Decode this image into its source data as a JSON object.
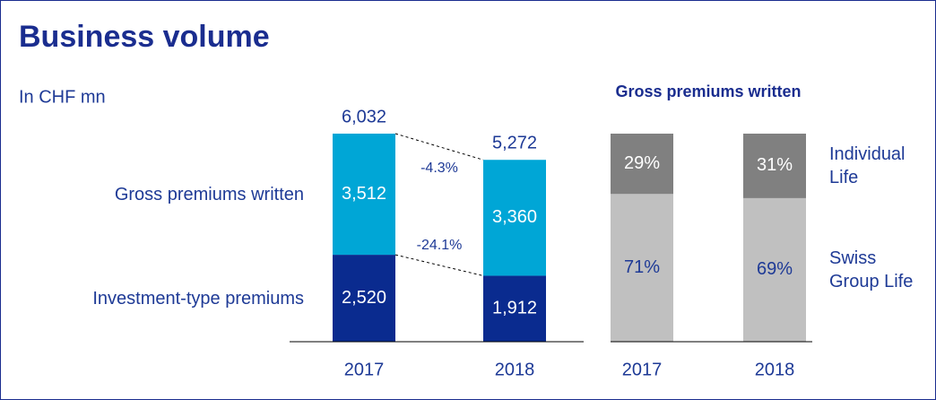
{
  "title": "Business volume",
  "subtitle": "In CHF mn",
  "chart_data": [
    {
      "type": "stacked_bar",
      "categories": [
        "2017",
        "2018"
      ],
      "series": [
        {
          "name": "Investment-type premiums",
          "color": "#0a2b8f",
          "label_color": "#ffffff",
          "values": [
            2520,
            1912
          ],
          "value_labels": [
            "2,520",
            "1,912"
          ]
        },
        {
          "name": "Gross premiums written",
          "color": "#00a6d6",
          "label_color": "#ffffff",
          "values": [
            3512,
            3360
          ],
          "value_labels": [
            "3,512",
            "3,360"
          ]
        }
      ],
      "totals": [
        6032,
        5272
      ],
      "total_labels": [
        "6,032",
        "5,272"
      ],
      "change_labels": [
        "-4.3%",
        "-24.1%"
      ]
    },
    {
      "type": "stacked_bar",
      "title": "Gross premiums written",
      "categories": [
        "2017",
        "2018"
      ],
      "series": [
        {
          "name": "Swiss Group Life",
          "color": "#c0c0c0",
          "label_color": "#1e3a96",
          "values": [
            71,
            69
          ],
          "value_labels": [
            "71%",
            "69%"
          ]
        },
        {
          "name": "Individual Life",
          "color": "#808080",
          "label_color": "#ffffff",
          "values": [
            29,
            31
          ],
          "value_labels": [
            "29%",
            "31%"
          ]
        }
      ]
    }
  ]
}
